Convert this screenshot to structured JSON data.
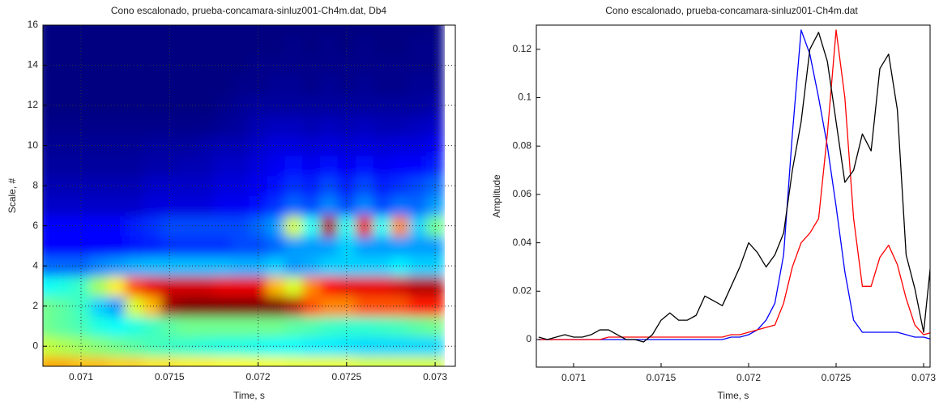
{
  "chart_data": [
    {
      "type": "heatmap",
      "title": "Cono escalonado, prueba-concamara-sinluz001-Ch4m.dat, Db4",
      "x_label": "Time, s",
      "y_label": "Scale, #",
      "colormap": "jet",
      "grid": true,
      "xlim": [
        0.070785,
        0.073114
      ],
      "ylim": [
        -1,
        16
      ],
      "xticks": [
        0.071,
        0.0715,
        0.072,
        0.0725,
        0.073
      ],
      "yticks": [
        0,
        2,
        4,
        6,
        8,
        10,
        12,
        14,
        16
      ],
      "x": [
        0.0708,
        0.0709,
        0.071,
        0.0711,
        0.0712,
        0.0713,
        0.0714,
        0.0715,
        0.0716,
        0.0717,
        0.0718,
        0.0719,
        0.072,
        0.0721,
        0.0722,
        0.0723,
        0.0724,
        0.0725,
        0.0726,
        0.0727,
        0.0728,
        0.0729,
        0.073
      ],
      "y": [
        -1,
        0,
        1,
        2,
        3,
        4,
        5,
        6,
        7,
        8,
        9,
        10,
        11,
        12,
        13,
        14,
        15,
        16
      ],
      "z": [
        [
          0.72,
          0.72,
          0.7,
          0.7,
          0.68,
          0.68,
          0.66,
          0.66,
          0.65,
          0.65,
          0.64,
          0.64,
          0.63,
          0.63,
          0.62,
          0.62,
          0.62,
          0.62,
          0.6,
          0.6,
          0.6,
          0.6,
          0.6
        ],
        [
          0.58,
          0.56,
          0.54,
          0.52,
          0.5,
          0.48,
          0.46,
          0.45,
          0.44,
          0.43,
          0.42,
          0.42,
          0.41,
          0.4,
          0.4,
          0.38,
          0.38,
          0.37,
          0.36,
          0.36,
          0.36,
          0.36,
          0.36
        ],
        [
          0.5,
          0.48,
          0.46,
          0.42,
          0.4,
          0.42,
          0.45,
          0.48,
          0.5,
          0.5,
          0.5,
          0.5,
          0.5,
          0.5,
          0.48,
          0.47,
          0.45,
          0.44,
          0.44,
          0.45,
          0.46,
          0.48,
          0.5
        ],
        [
          0.5,
          0.48,
          0.45,
          0.35,
          0.3,
          0.6,
          0.7,
          0.97,
          1,
          1,
          1,
          1,
          1,
          1,
          0.95,
          0.8,
          0.75,
          0.75,
          0.8,
          0.8,
          0.8,
          0.85,
          0.85
        ],
        [
          0.4,
          0.42,
          0.45,
          0.55,
          0.65,
          0.8,
          0.9,
          0.92,
          0.92,
          0.92,
          0.9,
          0.9,
          0.9,
          0.7,
          0.6,
          0.75,
          0.88,
          0.9,
          0.9,
          0.9,
          0.92,
          0.95,
          0.95
        ],
        [
          0.25,
          0.25,
          0.25,
          0.28,
          0.3,
          0.32,
          0.33,
          0.33,
          0.33,
          0.33,
          0.33,
          0.32,
          0.32,
          0.35,
          0.3,
          0.32,
          0.35,
          0.35,
          0.35,
          0.35,
          0.38,
          0.35,
          0.35
        ],
        [
          0.15,
          0.15,
          0.15,
          0.15,
          0.15,
          0.17,
          0.18,
          0.2,
          0.2,
          0.2,
          0.2,
          0.22,
          0.22,
          0.25,
          0.3,
          0.3,
          0.3,
          0.35,
          0.3,
          0.3,
          0.3,
          0.3,
          0.3
        ],
        [
          0.15,
          0.15,
          0.15,
          0.15,
          0.15,
          0.18,
          0.2,
          0.22,
          0.22,
          0.22,
          0.22,
          0.22,
          0.25,
          0.3,
          0.6,
          0.4,
          0.95,
          0.4,
          0.9,
          0.4,
          0.75,
          0.35,
          0.5
        ],
        [
          0.1,
          0.1,
          0.1,
          0.1,
          0.1,
          0.1,
          0.12,
          0.12,
          0.12,
          0.12,
          0.14,
          0.14,
          0.16,
          0.2,
          0.25,
          0.22,
          0.28,
          0.22,
          0.28,
          0.22,
          0.26,
          0.25,
          0.3
        ],
        [
          0.08,
          0.08,
          0.08,
          0.08,
          0.08,
          0.08,
          0.1,
          0.1,
          0.1,
          0.1,
          0.12,
          0.12,
          0.14,
          0.16,
          0.2,
          0.18,
          0.22,
          0.18,
          0.22,
          0.18,
          0.2,
          0.22,
          0.25
        ],
        [
          0.06,
          0.06,
          0.06,
          0.06,
          0.06,
          0.06,
          0.07,
          0.07,
          0.08,
          0.08,
          0.1,
          0.1,
          0.12,
          0.14,
          0.16,
          0.14,
          0.16,
          0.14,
          0.16,
          0.14,
          0.15,
          0.15,
          0.18
        ],
        [
          0.05,
          0.05,
          0.05,
          0.05,
          0.05,
          0.05,
          0.06,
          0.06,
          0.06,
          0.07,
          0.08,
          0.08,
          0.1,
          0.12,
          0.12,
          0.11,
          0.12,
          0.11,
          0.12,
          0.11,
          0.12,
          0.12,
          0.14
        ],
        [
          0.04,
          0.04,
          0.04,
          0.04,
          0.04,
          0.04,
          0.04,
          0.04,
          0.04,
          0.04,
          0.05,
          0.06,
          0.08,
          0.09,
          0.09,
          0.08,
          0.09,
          0.08,
          0.09,
          0.08,
          0.08,
          0.09,
          0.1
        ],
        [
          0.03,
          0.03,
          0.03,
          0.03,
          0.03,
          0.03,
          0.03,
          0.03,
          0.03,
          0.03,
          0.04,
          0.05,
          0.06,
          0.06,
          0.06,
          0.06,
          0.06,
          0.06,
          0.06,
          0.06,
          0.06,
          0.06,
          0.07
        ],
        [
          0.03,
          0.03,
          0.03,
          0.03,
          0.03,
          0.03,
          0.03,
          0.03,
          0.03,
          0.03,
          0.03,
          0.04,
          0.04,
          0.05,
          0.05,
          0.04,
          0.05,
          0.04,
          0.05,
          0.04,
          0.04,
          0.05,
          0.05
        ],
        [
          0.03,
          0.03,
          0.03,
          0.03,
          0.03,
          0.03,
          0.03,
          0.03,
          0.03,
          0.03,
          0.03,
          0.03,
          0.04,
          0.04,
          0.04,
          0.04,
          0.04,
          0.04,
          0.04,
          0.04,
          0.04,
          0.04,
          0.04
        ],
        [
          0.03,
          0.03,
          0.03,
          0.03,
          0.03,
          0.03,
          0.03,
          0.03,
          0.03,
          0.03,
          0.03,
          0.03,
          0.03,
          0.03,
          0.04,
          0.03,
          0.04,
          0.03,
          0.04,
          0.03,
          0.03,
          0.04,
          0.04
        ],
        [
          0.03,
          0.03,
          0.03,
          0.03,
          0.03,
          0.03,
          0.03,
          0.03,
          0.03,
          0.03,
          0.03,
          0.03,
          0.03,
          0.03,
          0.03,
          0.03,
          0.03,
          0.03,
          0.03,
          0.03,
          0.03,
          0.03,
          0.03
        ]
      ]
    },
    {
      "type": "line",
      "title": "Cono escalonado, prueba-concamara-sinluz001-Ch4m.dat",
      "x_label": "Time, s",
      "y_label": "Amplitude",
      "grid": false,
      "xlim": [
        0.070787,
        0.073037
      ],
      "ylim": [
        -0.0114,
        0.13
      ],
      "xticks": [
        0.071,
        0.0715,
        0.072,
        0.0725,
        0.073
      ],
      "yticks": [
        0,
        0.02,
        0.04,
        0.06,
        0.08,
        0.1,
        0.12
      ],
      "x": [
        0.0708,
        0.07085,
        0.0709,
        0.07095,
        0.071,
        0.07105,
        0.0711,
        0.07115,
        0.0712,
        0.07125,
        0.0713,
        0.07135,
        0.0714,
        0.07145,
        0.0715,
        0.07155,
        0.0716,
        0.07165,
        0.0717,
        0.07175,
        0.0718,
        0.07185,
        0.0719,
        0.07195,
        0.072,
        0.07205,
        0.0721,
        0.07215,
        0.0722,
        0.07225,
        0.0723,
        0.07235,
        0.0724,
        0.07245,
        0.0725,
        0.07255,
        0.0726,
        0.07265,
        0.0727,
        0.07275,
        0.0728,
        0.07285,
        0.0729,
        0.07295,
        0.073,
        0.07305
      ],
      "series": [
        {
          "color": "#0000ff",
          "values": [
            0,
            0,
            0,
            0,
            0,
            0,
            0,
            0,
            0,
            0,
            0,
            0,
            0,
            0,
            0,
            0,
            0,
            0,
            0,
            0,
            0,
            0,
            0.001,
            0.001,
            0.002,
            0.004,
            0.008,
            0.015,
            0.035,
            0.085,
            0.128,
            0.118,
            0.1,
            0.08,
            0.055,
            0.028,
            0.008,
            0.003,
            0.003,
            0.003,
            0.003,
            0.003,
            0.002,
            0.001,
            0.001,
            0
          ]
        },
        {
          "color": "#ff0000",
          "values": [
            0,
            0,
            0,
            0,
            0,
            0,
            0,
            0,
            0.001,
            0.001,
            0.001,
            0.001,
            0.001,
            0.001,
            0.001,
            0.001,
            0.001,
            0.001,
            0.001,
            0.001,
            0.001,
            0.001,
            0.002,
            0.002,
            0.003,
            0.004,
            0.005,
            0.006,
            0.015,
            0.03,
            0.04,
            0.044,
            0.05,
            0.085,
            0.128,
            0.1,
            0.05,
            0.022,
            0.022,
            0.034,
            0.039,
            0.031,
            0.017,
            0.006,
            0.002,
            0.003
          ]
        },
        {
          "color": "#000000",
          "values": [
            0.001,
            0,
            0.001,
            0.002,
            0.001,
            0.001,
            0.002,
            0.004,
            0.004,
            0.002,
            0,
            0,
            -0.001,
            0.002,
            0.008,
            0.011,
            0.008,
            0.008,
            0.01,
            0.018,
            0.016,
            0.014,
            0.022,
            0.03,
            0.04,
            0.036,
            0.03,
            0.035,
            0.044,
            0.07,
            0.09,
            0.12,
            0.127,
            0.115,
            0.09,
            0.065,
            0.07,
            0.085,
            0.078,
            0.112,
            0.118,
            0.095,
            0.035,
            0.021,
            0.003,
            0.038
          ]
        }
      ]
    }
  ]
}
